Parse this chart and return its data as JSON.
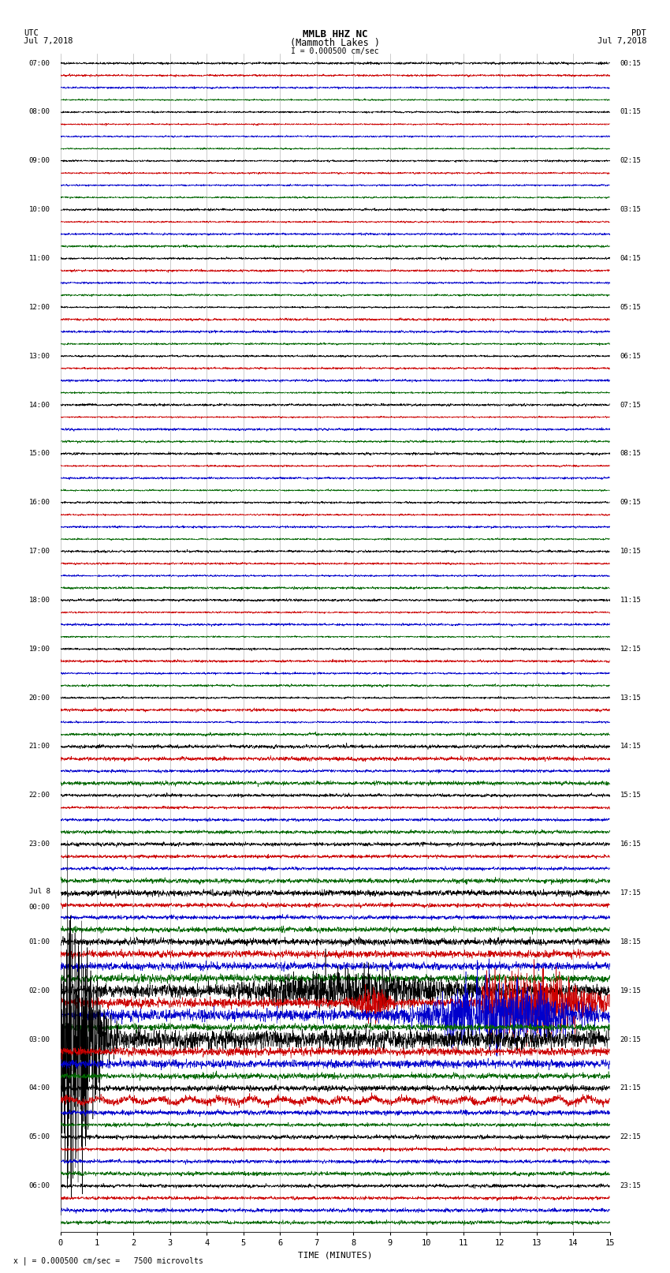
{
  "title_line1": "MMLB HHZ NC",
  "title_line2": "(Mammoth Lakes )",
  "scale_label": "I = 0.000500 cm/sec",
  "left_label_top": "UTC",
  "left_label_date": "Jul 7,2018",
  "right_label_top": "PDT",
  "right_label_date": "Jul 7,2018",
  "xlabel": "TIME (MINUTES)",
  "footnote": "x | = 0.000500 cm/sec =   7500 microvolts",
  "bg_color": "#ffffff",
  "grid_color": "#999999",
  "trace_colors": [
    "#000000",
    "#cc0000",
    "#0000cc",
    "#006600"
  ],
  "n_rows": 96,
  "n_minutes": 15,
  "samples_per_minute": 200,
  "noise_seed": 12345,
  "utc_labels": [
    "07:00",
    "",
    "",
    "",
    "08:00",
    "",
    "",
    "",
    "09:00",
    "",
    "",
    "",
    "10:00",
    "",
    "",
    "",
    "11:00",
    "",
    "",
    "",
    "12:00",
    "",
    "",
    "",
    "13:00",
    "",
    "",
    "",
    "14:00",
    "",
    "",
    "",
    "15:00",
    "",
    "",
    "",
    "16:00",
    "",
    "",
    "",
    "17:00",
    "",
    "",
    "",
    "18:00",
    "",
    "",
    "",
    "19:00",
    "",
    "",
    "",
    "20:00",
    "",
    "",
    "",
    "21:00",
    "",
    "",
    "",
    "22:00",
    "",
    "",
    "",
    "23:00",
    "",
    "",
    "",
    "Jul 8",
    "00:00",
    "",
    "",
    "01:00",
    "",
    "",
    "",
    "02:00",
    "",
    "",
    "",
    "03:00",
    "",
    "",
    "",
    "04:00",
    "",
    "",
    "",
    "05:00",
    "",
    "",
    "",
    "06:00",
    "",
    "",
    ""
  ],
  "pdt_labels": [
    "00:15",
    "",
    "",
    "",
    "01:15",
    "",
    "",
    "",
    "02:15",
    "",
    "",
    "",
    "03:15",
    "",
    "",
    "",
    "04:15",
    "",
    "",
    "",
    "05:15",
    "",
    "",
    "",
    "06:15",
    "",
    "",
    "",
    "07:15",
    "",
    "",
    "",
    "08:15",
    "",
    "",
    "",
    "09:15",
    "",
    "",
    "",
    "10:15",
    "",
    "",
    "",
    "11:15",
    "",
    "",
    "",
    "12:15",
    "",
    "",
    "",
    "13:15",
    "",
    "",
    "",
    "14:15",
    "",
    "",
    "",
    "15:15",
    "",
    "",
    "",
    "16:15",
    "",
    "",
    "",
    "17:15",
    "",
    "",
    "",
    "18:15",
    "",
    "",
    "",
    "19:15",
    "",
    "",
    "",
    "20:15",
    "",
    "",
    "",
    "21:15",
    "",
    "",
    "",
    "22:15",
    "",
    "",
    "",
    "23:15",
    "",
    "",
    ""
  ]
}
